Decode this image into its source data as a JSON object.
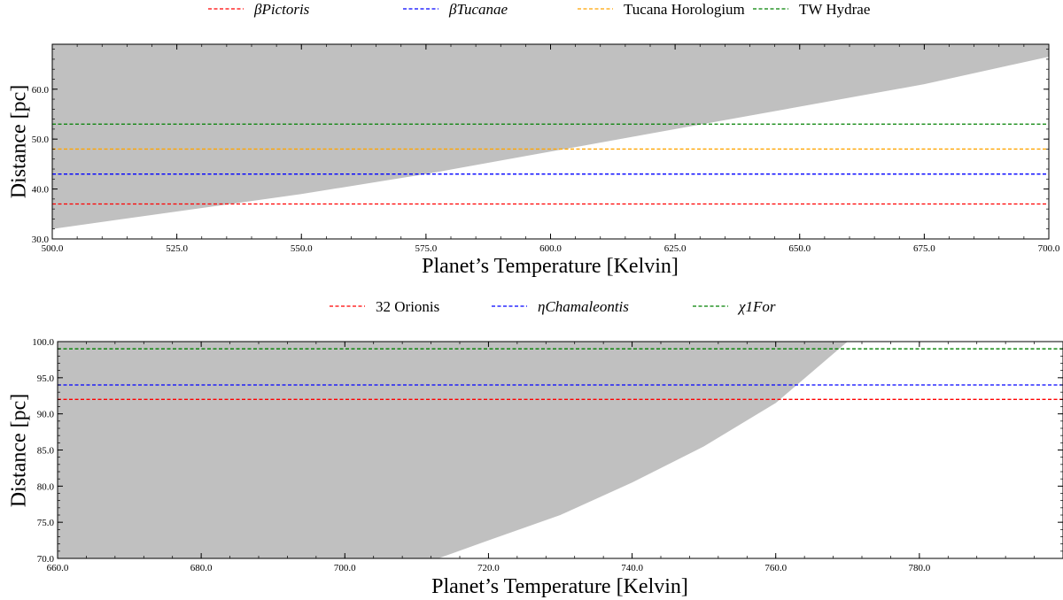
{
  "chart_data": [
    {
      "type": "line",
      "xlabel": "Planet’s Temperature [Kelvin]",
      "ylabel": "Distance [pc]",
      "xlim": [
        500,
        700
      ],
      "ylim": [
        30,
        69
      ],
      "xticks": [
        "500.0",
        "525.0",
        "550.0",
        "575.0",
        "600.0",
        "625.0",
        "650.0",
        "675.0",
        "700.0"
      ],
      "xtick_values": [
        500,
        525,
        550,
        575,
        600,
        625,
        650,
        675,
        700
      ],
      "yticks": [
        "30.0",
        "40.0",
        "50.0",
        "60.0"
      ],
      "ytick_values": [
        30,
        40,
        50,
        60
      ],
      "grid": false,
      "legend_position": "top",
      "shaded_region": {
        "color": "#c0c0c0",
        "boundary": [
          [
            500,
            32
          ],
          [
            550,
            39
          ],
          [
            575,
            43
          ],
          [
            600,
            47.5
          ],
          [
            625,
            52
          ],
          [
            650,
            56.5
          ],
          [
            675,
            61
          ],
          [
            700,
            66.5
          ]
        ]
      },
      "series": [
        {
          "name": "βPictoris",
          "name_prefix": "β",
          "name_main": "Pictoris",
          "italic": true,
          "color": "#ff0000",
          "style": "dashed",
          "y": 37
        },
        {
          "name": "βTucanae",
          "name_prefix": "β",
          "name_main": "Tucanae",
          "italic": true,
          "color": "#0000ff",
          "style": "dashed",
          "y": 43
        },
        {
          "name": "Tucana Horologium",
          "name_prefix": "",
          "name_main": "Tucana Horologium",
          "italic": false,
          "color": "#ffa500",
          "style": "dashed",
          "y": 48
        },
        {
          "name": "TW Hydrae",
          "name_prefix": "",
          "name_main": "TW Hydrae",
          "italic": false,
          "color": "#008000",
          "style": "dashed",
          "y": 53
        }
      ]
    },
    {
      "type": "line",
      "xlabel": "Planet’s Temperature [Kelvin]",
      "ylabel": "Distance [pc]",
      "xlim": [
        660,
        800
      ],
      "ylim": [
        70,
        100
      ],
      "xticks": [
        "660.0",
        "680.0",
        "700.0",
        "720.0",
        "740.0",
        "760.0",
        "780.0"
      ],
      "xtick_values": [
        660,
        680,
        700,
        720,
        740,
        760,
        780
      ],
      "yticks": [
        "70.0",
        "75.0",
        "80.0",
        "85.0",
        "90.0",
        "95.0",
        "100.0"
      ],
      "ytick_values": [
        70,
        75,
        80,
        85,
        90,
        95,
        100
      ],
      "grid": false,
      "legend_position": "top",
      "shaded_region": {
        "color": "#c0c0c0",
        "boundary": [
          [
            713,
            70
          ],
          [
            720,
            72.5
          ],
          [
            730,
            76
          ],
          [
            740,
            80.5
          ],
          [
            750,
            85.5
          ],
          [
            760,
            91.5
          ],
          [
            770,
            100
          ]
        ]
      },
      "series": [
        {
          "name": "32 Orionis",
          "name_prefix": "",
          "name_main": "32 Orionis",
          "italic": false,
          "color": "#ff0000",
          "style": "dashed",
          "y": 92
        },
        {
          "name": "ηChamaleontis",
          "name_prefix": "η",
          "name_main": "Chamaleontis",
          "italic": true,
          "color": "#0000ff",
          "style": "dashed",
          "y": 94
        },
        {
          "name": "χ1For",
          "name_prefix": "χ1",
          "name_main": "For",
          "italic": true,
          "color": "#008000",
          "style": "dashed",
          "y": 99
        }
      ]
    }
  ]
}
